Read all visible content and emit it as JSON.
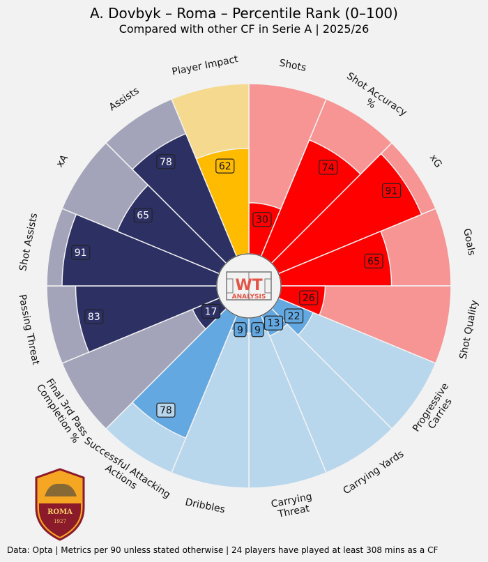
{
  "title": "A. Dovbyk – Roma – Percentile Rank (0–100)",
  "subtitle": "Compared with other CF in Serie A | 2025/26",
  "footer": "Data: Opta | Metrics per 90 unless stated otherwise | 24 players have played at least 308 mins as a CF",
  "center_logo": {
    "top": "WT",
    "bottom": "ANALYSIS",
    "colors": {
      "text": "#e05545",
      "lines": "#777777"
    }
  },
  "club_badge": {
    "name": "ROMA",
    "year": "1927",
    "colors": {
      "gold": "#f5a623",
      "red": "#8b1a2b"
    }
  },
  "colors": {
    "background": "#f2f2f2",
    "Shooting": {
      "value": "#ff0000",
      "bg": "#f79494"
    },
    "Playmaking": {
      "value": "#2d3063",
      "bg": "#a3a4ba"
    },
    "Impact": {
      "value": "#ffbb00",
      "bg": "#f5d98f"
    },
    "Passing accuracy": {
      "value": "#2d3063",
      "bg": "#a3a4ba"
    },
    "Dribbling & carrying": {
      "value": "#63a8e0",
      "bg": "#b8d6ec"
    }
  },
  "chart_data": {
    "type": "radial-bar",
    "title": "A. Dovbyk – Roma – Percentile Rank (0–100)",
    "subtitle": "Compared with other CF in Serie A | 2025/26",
    "rlim": [
      0,
      100
    ],
    "start": "top, clockwise",
    "categories": [
      {
        "label": "Shots",
        "value": 30,
        "group": "Shooting"
      },
      {
        "label": "Shot Accuracy %",
        "value": 74,
        "group": "Shooting"
      },
      {
        "label": "xG",
        "value": 91,
        "group": "Shooting"
      },
      {
        "label": "Goals",
        "value": 65,
        "group": "Shooting"
      },
      {
        "label": "Shot Quality",
        "value": 26,
        "group": "Shooting"
      },
      {
        "label": "Progressive Carries",
        "value": 22,
        "group": "Dribbling & carrying"
      },
      {
        "label": "Carrying Yards",
        "value": 13,
        "group": "Dribbling & carrying"
      },
      {
        "label": "Carrying Threat",
        "value": 9,
        "group": "Dribbling & carrying"
      },
      {
        "label": "Dribbles",
        "value": 9,
        "group": "Dribbling & carrying"
      },
      {
        "label": "Successful Attacking Actions",
        "value": 78,
        "group": "Dribbling & carrying"
      },
      {
        "label": "Final 3rd Pass Completion %",
        "value": 17,
        "group": "Passing accuracy"
      },
      {
        "label": "Passing Threat",
        "value": 83,
        "group": "Playmaking"
      },
      {
        "label": "Shot Assists",
        "value": 91,
        "group": "Playmaking"
      },
      {
        "label": "xA",
        "value": 65,
        "group": "Playmaking"
      },
      {
        "label": "Assists",
        "value": 78,
        "group": "Playmaking"
      },
      {
        "label": "Player Impact",
        "value": 62,
        "group": "Impact"
      }
    ]
  }
}
